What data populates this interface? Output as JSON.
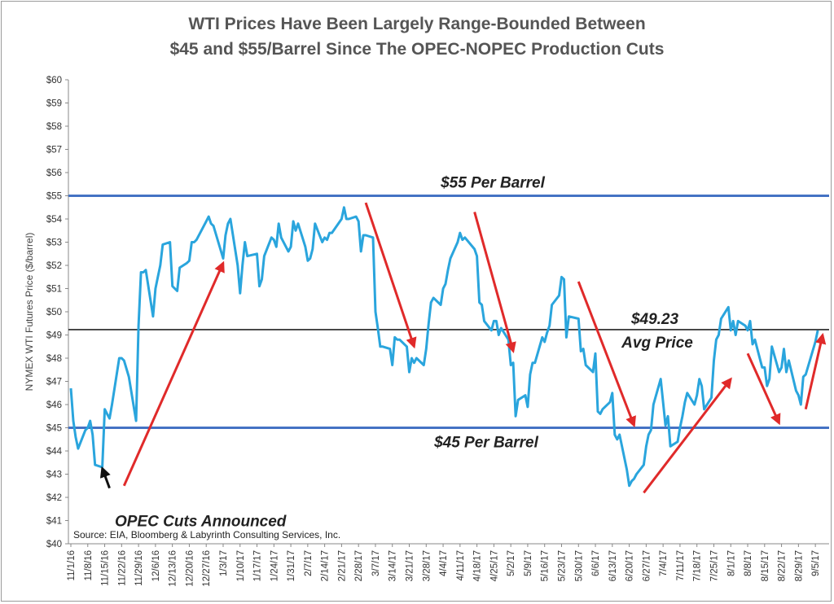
{
  "chart_data": {
    "type": "line",
    "title_line1": "WTI Prices Have Been Largely Range-Bounded Between",
    "title_line2": "$45 and $55/Barrel Since The OPEC-NOPEC Production Cuts",
    "ylabel": "NYMEX WTI Futures Price ($/barrel)",
    "xlabel": "",
    "ylim": [
      40,
      60
    ],
    "yticks": [
      "$40",
      "$41",
      "$42",
      "$43",
      "$44",
      "$45",
      "$46",
      "$47",
      "$48",
      "$49",
      "$50",
      "$51",
      "$52",
      "$53",
      "$54",
      "$55",
      "$56",
      "$57",
      "$58",
      "$59",
      "$60"
    ],
    "xticks": [
      "11/1/16",
      "11/8/16",
      "11/15/16",
      "11/22/16",
      "11/29/16",
      "12/6/16",
      "12/13/16",
      "12/20/16",
      "12/27/16",
      "1/3/17",
      "1/10/17",
      "1/17/17",
      "1/24/17",
      "1/31/17",
      "2/7/17",
      "2/14/17",
      "2/21/17",
      "2/28/17",
      "3/7/17",
      "3/14/17",
      "3/21/17",
      "3/28/17",
      "4/4/17",
      "4/11/17",
      "4/18/17",
      "4/25/17",
      "5/2/17",
      "5/9/17",
      "5/16/17",
      "5/23/17",
      "5/30/17",
      "6/6/17",
      "6/13/17",
      "6/20/17",
      "6/27/17",
      "7/4/17",
      "7/11/17",
      "7/18/17",
      "7/25/17",
      "8/1/17",
      "8/8/17",
      "8/15/17",
      "8/22/17",
      "8/29/17",
      "9/5/17"
    ],
    "series": [
      {
        "color": "#2aa5dd",
        "points": [
          [
            "11/1/16",
            46.7
          ],
          [
            "11/2/16",
            45.3
          ],
          [
            "11/3/16",
            44.6
          ],
          [
            "11/4/16",
            44.1
          ],
          [
            "11/7/16",
            44.9
          ],
          [
            "11/8/16",
            45.0
          ],
          [
            "11/9/16",
            45.3
          ],
          [
            "11/10/16",
            44.7
          ],
          [
            "11/11/16",
            43.4
          ],
          [
            "11/14/16",
            43.3
          ],
          [
            "11/15/16",
            45.8
          ],
          [
            "11/16/16",
            45.6
          ],
          [
            "11/17/16",
            45.4
          ],
          [
            "11/18/16",
            46.0
          ],
          [
            "11/21/16",
            48.0
          ],
          [
            "11/22/16",
            48.0
          ],
          [
            "11/23/16",
            47.9
          ],
          [
            "11/25/16",
            47.2
          ],
          [
            "11/28/16",
            45.3
          ],
          [
            "11/29/16",
            49.4
          ],
          [
            "11/30/16",
            51.7
          ],
          [
            "12/1/16",
            51.7
          ],
          [
            "12/2/16",
            51.8
          ],
          [
            "12/5/16",
            49.8
          ],
          [
            "12/6/16",
            51.0
          ],
          [
            "12/7/16",
            51.5
          ],
          [
            "12/8/16",
            52.0
          ],
          [
            "12/9/16",
            52.9
          ],
          [
            "12/12/16",
            53.0
          ],
          [
            "12/13/16",
            51.1
          ],
          [
            "12/14/16",
            51.0
          ],
          [
            "12/15/16",
            50.9
          ],
          [
            "12/16/16",
            51.9
          ],
          [
            "12/19/16",
            52.1
          ],
          [
            "12/20/16",
            52.2
          ],
          [
            "12/21/16",
            53.0
          ],
          [
            "12/22/16",
            53.0
          ],
          [
            "12/23/16",
            53.1
          ],
          [
            "12/27/16",
            53.9
          ],
          [
            "12/28/16",
            54.1
          ],
          [
            "12/29/16",
            53.8
          ],
          [
            "12/30/16",
            53.7
          ],
          [
            "1/3/17",
            52.3
          ],
          [
            "1/4/17",
            53.3
          ],
          [
            "1/5/17",
            53.8
          ],
          [
            "1/6/17",
            54.0
          ],
          [
            "1/9/17",
            52.0
          ],
          [
            "1/10/17",
            50.8
          ],
          [
            "1/11/17",
            52.0
          ],
          [
            "1/12/17",
            53.0
          ],
          [
            "1/13/17",
            52.4
          ],
          [
            "1/17/17",
            52.5
          ],
          [
            "1/18/17",
            51.1
          ],
          [
            "1/19/17",
            51.4
          ],
          [
            "1/20/17",
            52.4
          ],
          [
            "1/23/17",
            53.2
          ],
          [
            "1/24/17",
            53.1
          ],
          [
            "1/25/17",
            52.8
          ],
          [
            "1/26/17",
            53.8
          ],
          [
            "1/27/17",
            53.2
          ],
          [
            "1/30/17",
            52.6
          ],
          [
            "1/31/17",
            52.8
          ],
          [
            "2/1/17",
            53.9
          ],
          [
            "2/2/17",
            53.5
          ],
          [
            "2/3/17",
            53.8
          ],
          [
            "2/6/17",
            52.8
          ],
          [
            "2/7/17",
            52.2
          ],
          [
            "2/8/17",
            52.3
          ],
          [
            "2/9/17",
            52.7
          ],
          [
            "2/10/17",
            53.8
          ],
          [
            "2/13/17",
            53.0
          ],
          [
            "2/14/17",
            53.2
          ],
          [
            "2/15/17",
            53.1
          ],
          [
            "2/16/17",
            53.4
          ],
          [
            "2/17/17",
            53.4
          ],
          [
            "2/21/17",
            54.0
          ],
          [
            "2/22/17",
            54.5
          ],
          [
            "2/23/17",
            54.0
          ],
          [
            "2/24/17",
            54.0
          ],
          [
            "2/27/17",
            54.1
          ],
          [
            "2/28/17",
            53.9
          ],
          [
            "3/1/17",
            52.6
          ],
          [
            "3/2/17",
            53.3
          ],
          [
            "3/3/17",
            53.3
          ],
          [
            "3/6/17",
            53.2
          ],
          [
            "3/7/17",
            50.0
          ],
          [
            "3/8/17",
            49.3
          ],
          [
            "3/9/17",
            48.5
          ],
          [
            "3/10/17",
            48.5
          ],
          [
            "3/13/17",
            48.4
          ],
          [
            "3/14/17",
            47.7
          ],
          [
            "3/15/17",
            48.9
          ],
          [
            "3/16/17",
            48.8
          ],
          [
            "3/17/17",
            48.8
          ],
          [
            "3/20/17",
            48.5
          ],
          [
            "3/21/17",
            47.4
          ],
          [
            "3/22/17",
            48.0
          ],
          [
            "3/23/17",
            47.8
          ],
          [
            "3/24/17",
            48.0
          ],
          [
            "3/27/17",
            47.7
          ],
          [
            "3/28/17",
            48.4
          ],
          [
            "3/29/17",
            49.5
          ],
          [
            "3/30/17",
            50.4
          ],
          [
            "3/31/17",
            50.6
          ],
          [
            "4/3/17",
            50.3
          ],
          [
            "4/4/17",
            51.0
          ],
          [
            "4/5/17",
            51.2
          ],
          [
            "4/6/17",
            51.8
          ],
          [
            "4/7/17",
            52.3
          ],
          [
            "4/10/17",
            53.0
          ],
          [
            "4/11/17",
            53.4
          ],
          [
            "4/12/17",
            53.1
          ],
          [
            "4/13/17",
            53.2
          ],
          [
            "4/17/17",
            52.7
          ],
          [
            "4/18/17",
            52.4
          ],
          [
            "4/19/17",
            50.4
          ],
          [
            "4/20/17",
            50.3
          ],
          [
            "4/21/17",
            49.6
          ],
          [
            "4/24/17",
            49.2
          ],
          [
            "4/25/17",
            49.6
          ],
          [
            "4/26/17",
            49.6
          ],
          [
            "4/27/17",
            49.0
          ],
          [
            "4/28/17",
            49.3
          ],
          [
            "5/1/17",
            48.8
          ],
          [
            "5/2/17",
            47.7
          ],
          [
            "5/3/17",
            47.8
          ],
          [
            "5/4/17",
            45.5
          ],
          [
            "5/5/17",
            46.2
          ],
          [
            "5/8/17",
            46.4
          ],
          [
            "5/9/17",
            45.9
          ],
          [
            "5/10/17",
            47.3
          ],
          [
            "5/11/17",
            47.8
          ],
          [
            "5/12/17",
            47.8
          ],
          [
            "5/15/17",
            48.9
          ],
          [
            "5/16/17",
            48.7
          ],
          [
            "5/17/17",
            49.1
          ],
          [
            "5/18/17",
            49.4
          ],
          [
            "5/19/17",
            50.3
          ],
          [
            "5/22/17",
            50.7
          ],
          [
            "5/23/17",
            51.5
          ],
          [
            "5/24/17",
            51.4
          ],
          [
            "5/25/17",
            48.9
          ],
          [
            "5/26/17",
            49.8
          ],
          [
            "5/30/17",
            49.7
          ],
          [
            "5/31/17",
            48.3
          ],
          [
            "6/1/17",
            48.4
          ],
          [
            "6/2/17",
            47.7
          ],
          [
            "6/5/17",
            47.4
          ],
          [
            "6/6/17",
            48.2
          ],
          [
            "6/7/17",
            45.7
          ],
          [
            "6/8/17",
            45.6
          ],
          [
            "6/9/17",
            45.8
          ],
          [
            "6/12/17",
            46.1
          ],
          [
            "6/13/17",
            46.5
          ],
          [
            "6/14/17",
            44.7
          ],
          [
            "6/15/17",
            44.5
          ],
          [
            "6/16/17",
            44.7
          ],
          [
            "6/19/17",
            43.2
          ],
          [
            "6/20/17",
            42.5
          ],
          [
            "6/21/17",
            42.7
          ],
          [
            "6/22/17",
            42.8
          ],
          [
            "6/23/17",
            43.0
          ],
          [
            "6/26/17",
            43.4
          ],
          [
            "6/27/17",
            44.2
          ],
          [
            "6/28/17",
            44.7
          ],
          [
            "6/29/17",
            44.9
          ],
          [
            "6/30/17",
            46.0
          ],
          [
            "7/3/17",
            47.1
          ],
          [
            "7/5/17",
            45.1
          ],
          [
            "7/6/17",
            45.5
          ],
          [
            "7/7/17",
            44.2
          ],
          [
            "7/10/17",
            44.4
          ],
          [
            "7/11/17",
            45.0
          ],
          [
            "7/12/17",
            45.5
          ],
          [
            "7/13/17",
            46.1
          ],
          [
            "7/14/17",
            46.5
          ],
          [
            "7/17/17",
            46.0
          ],
          [
            "7/18/17",
            46.4
          ],
          [
            "7/19/17",
            47.1
          ],
          [
            "7/20/17",
            46.8
          ],
          [
            "7/21/17",
            45.8
          ],
          [
            "7/24/17",
            46.3
          ],
          [
            "7/25/17",
            47.9
          ],
          [
            "7/26/17",
            48.8
          ],
          [
            "7/27/17",
            49.0
          ],
          [
            "7/28/17",
            49.7
          ],
          [
            "7/31/17",
            50.2
          ],
          [
            "8/1/17",
            49.2
          ],
          [
            "8/2/17",
            49.6
          ],
          [
            "8/3/17",
            49.0
          ],
          [
            "8/4/17",
            49.6
          ],
          [
            "8/7/17",
            49.4
          ],
          [
            "8/8/17",
            49.2
          ],
          [
            "8/9/17",
            49.6
          ],
          [
            "8/10/17",
            48.6
          ],
          [
            "8/11/17",
            48.8
          ],
          [
            "8/14/17",
            47.6
          ],
          [
            "8/15/17",
            47.6
          ],
          [
            "8/16/17",
            46.8
          ],
          [
            "8/17/17",
            47.1
          ],
          [
            "8/18/17",
            48.5
          ],
          [
            "8/21/17",
            47.4
          ],
          [
            "8/22/17",
            47.6
          ],
          [
            "8/23/17",
            48.4
          ],
          [
            "8/24/17",
            47.4
          ],
          [
            "8/25/17",
            47.9
          ],
          [
            "8/28/17",
            46.6
          ],
          [
            "8/29/17",
            46.4
          ],
          [
            "8/30/17",
            46.0
          ],
          [
            "8/31/17",
            47.2
          ],
          [
            "9/1/17",
            47.3
          ],
          [
            "9/5/17",
            48.7
          ],
          [
            "9/6/17",
            49.2
          ]
        ]
      }
    ],
    "reference_lines": [
      {
        "value": 55,
        "label": "$55 Per Barrel",
        "color": "#4472c4"
      },
      {
        "value": 45,
        "label": "$45 Per Barrel",
        "color": "#4472c4"
      },
      {
        "value": 49.23,
        "label": "$49.23",
        "sublabel": "Avg Price",
        "color": "#222222"
      }
    ],
    "annotations": [
      {
        "text": "OPEC Cuts Announced",
        "pointer_color": "#111111"
      }
    ],
    "trend_arrows": [
      {
        "color": "#e02a2a",
        "from": [
          "11/23/16",
          42.5
        ],
        "to": [
          "1/3/17",
          52.1
        ]
      },
      {
        "color": "#e02a2a",
        "from": [
          "3/3/17",
          54.7
        ],
        "to": [
          "3/23/17",
          48.5
        ]
      },
      {
        "color": "#e02a2a",
        "from": [
          "4/17/17",
          54.3
        ],
        "to": [
          "5/3/17",
          48.3
        ]
      },
      {
        "color": "#e02a2a",
        "from": [
          "5/30/17",
          51.3
        ],
        "to": [
          "6/22/17",
          45.1
        ]
      },
      {
        "color": "#e02a2a",
        "from": [
          "6/26/17",
          42.2
        ],
        "to": [
          "8/1/17",
          47.1
        ]
      },
      {
        "color": "#e02a2a",
        "from": [
          "8/8/17",
          48.2
        ],
        "to": [
          "8/21/17",
          45.2
        ]
      },
      {
        "color": "#e02a2a",
        "from": [
          "9/1/17",
          45.8
        ],
        "to": [
          "9/8/17",
          49.0
        ]
      }
    ],
    "source": "Source:  EIA, Bloomberg & Labyrinth Consulting Services, Inc.",
    "grid": false,
    "legend": "none"
  }
}
